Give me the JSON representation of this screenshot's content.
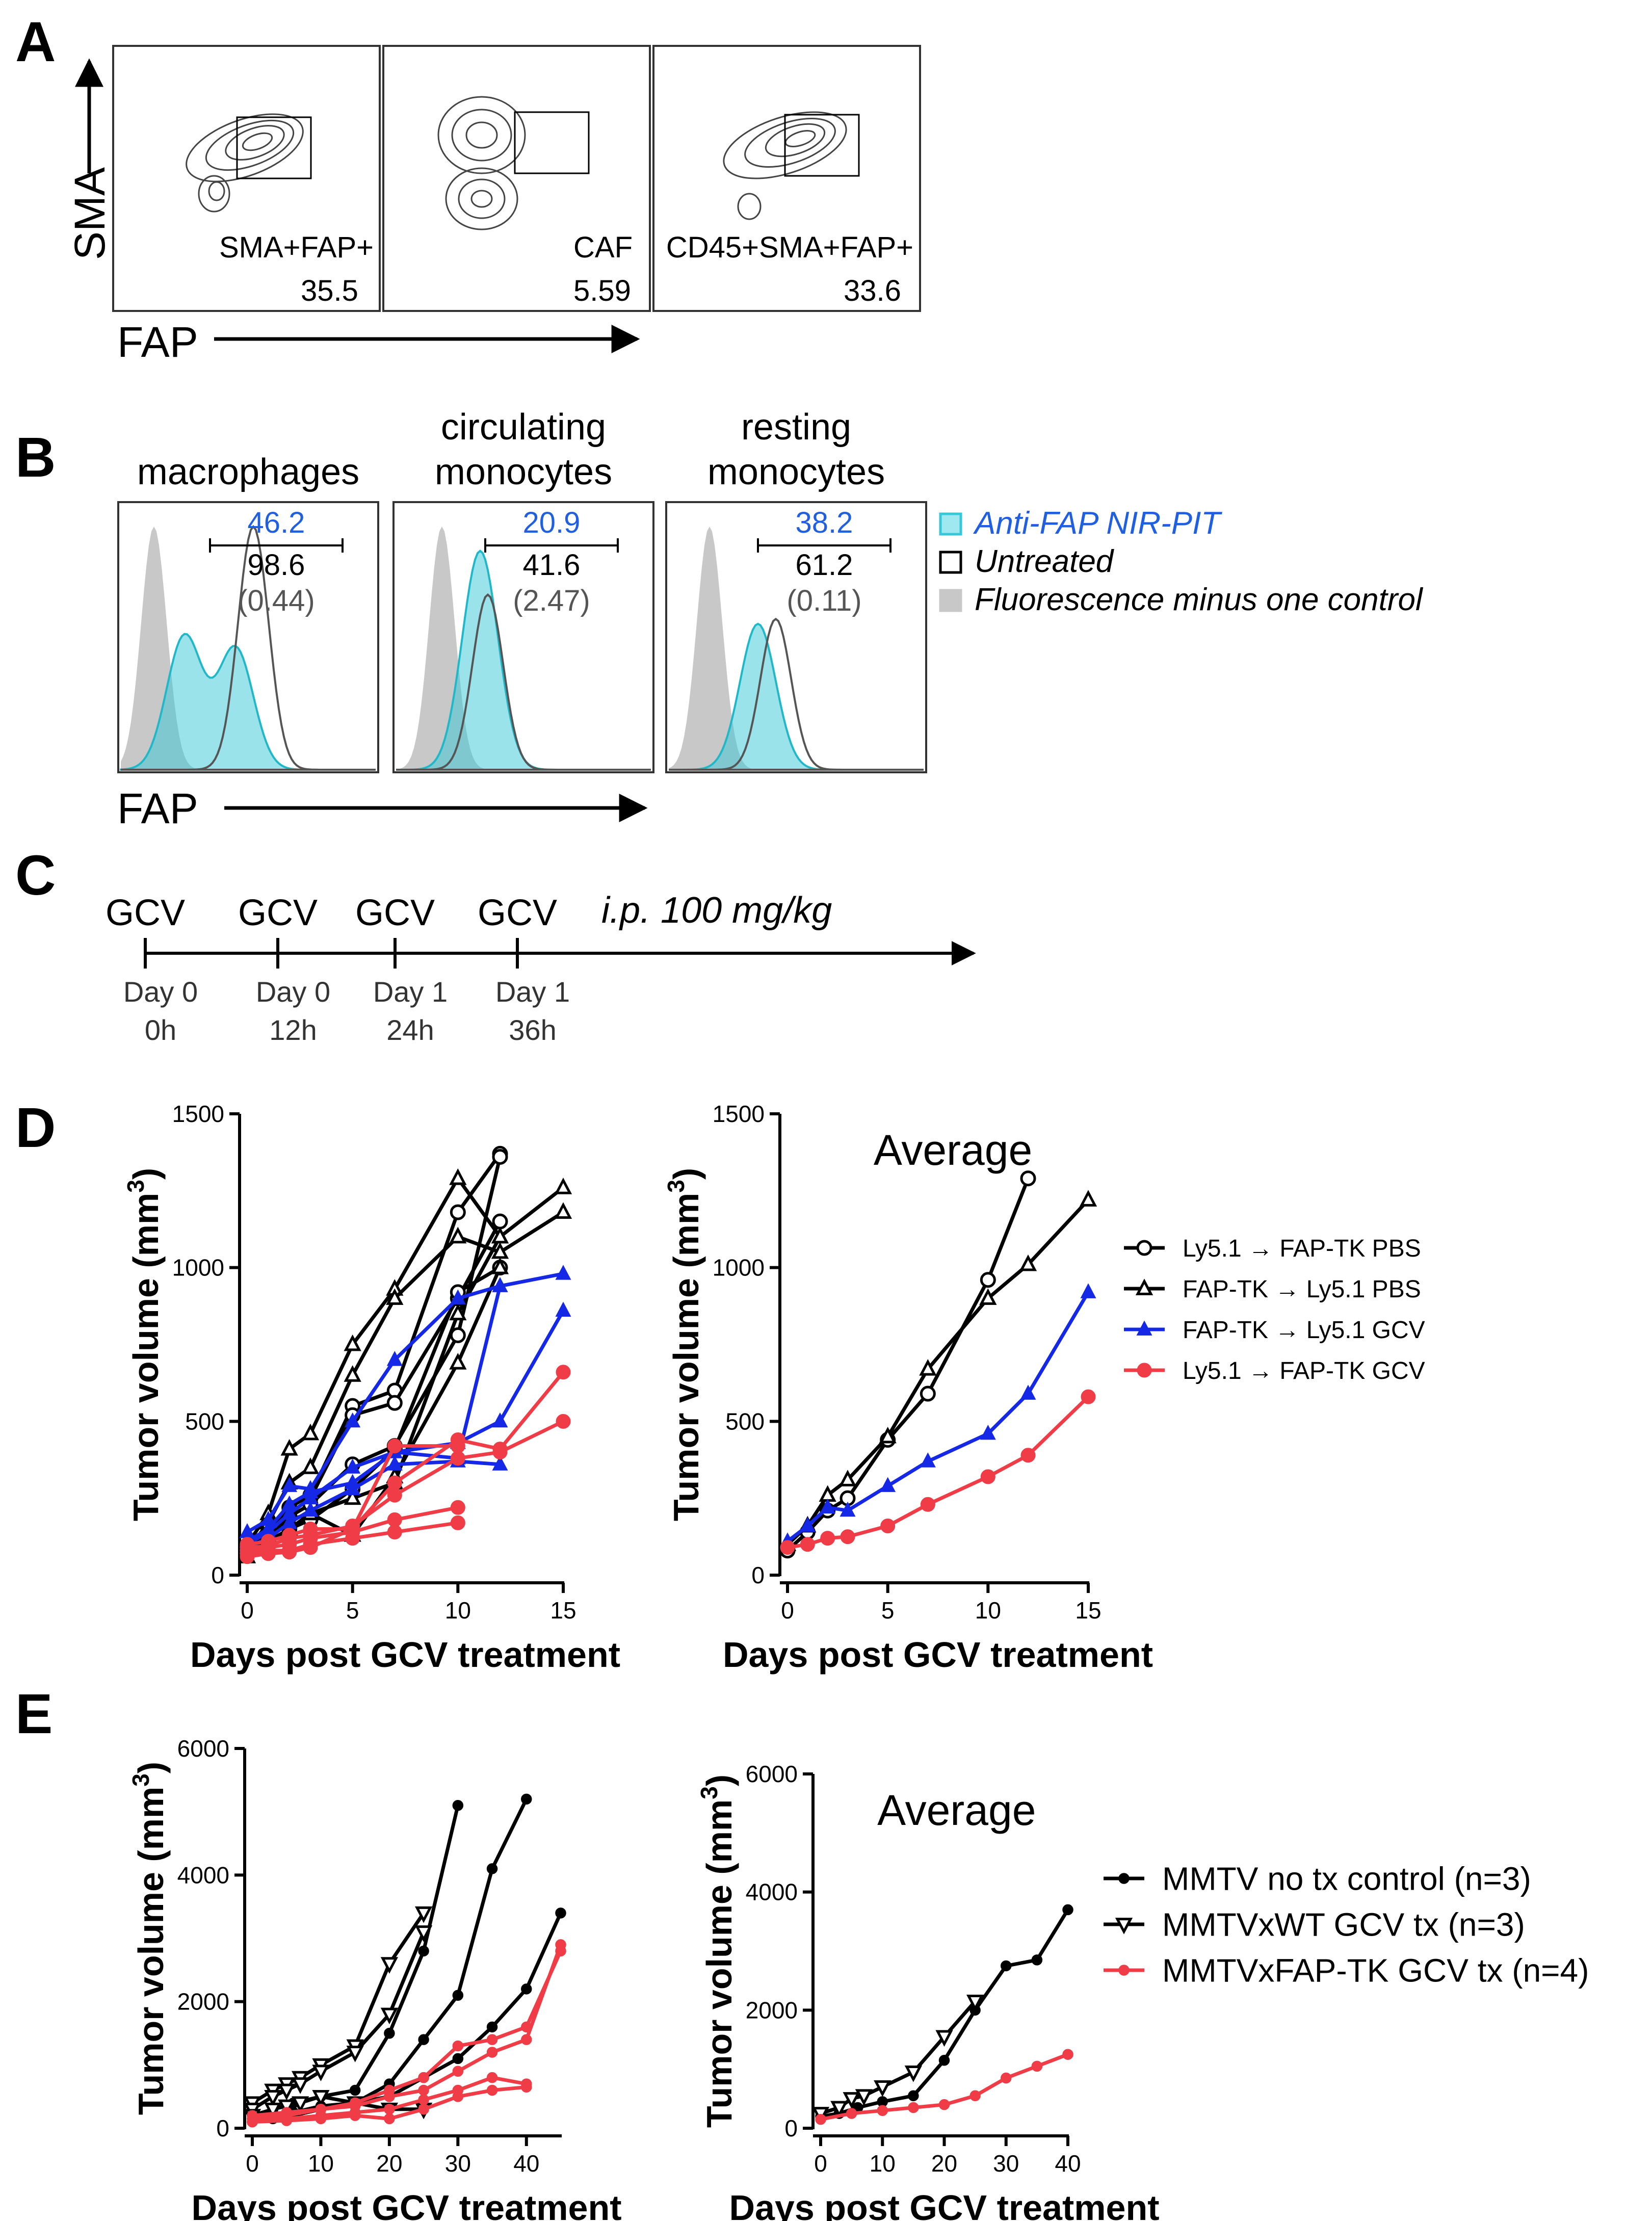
{
  "panels": {
    "A": {
      "label": "A",
      "y_axis": "SMA",
      "x_axis": "FAP",
      "plots": [
        {
          "name": "SMA+FAP+",
          "value": "35.5"
        },
        {
          "name": "CAF",
          "value": "5.59"
        },
        {
          "name": "CD45+SMA+FAP+",
          "value": "33.6"
        }
      ]
    },
    "B": {
      "label": "B",
      "x_axis": "FAP",
      "plots": [
        {
          "title1": "",
          "title2": "macrophages",
          "v1": "46.2",
          "v2": "98.6",
          "v3": "(0.44)"
        },
        {
          "title1": "circulating",
          "title2": "monocytes",
          "v1": "20.9",
          "v2": "41.6",
          "v3": "(2.47)"
        },
        {
          "title1": "resting",
          "title2": "monocytes",
          "v1": "38.2",
          "v2": "61.2",
          "v3": "(0.11)"
        }
      ],
      "legend": [
        {
          "label": "Anti-FAP NIR-PIT",
          "color": "#1f5fe0",
          "swatch": "#35c8d8"
        },
        {
          "label": "Untreated",
          "color": "#000000",
          "swatch": "#ffffff"
        },
        {
          "label": "Fluorescence minus one control",
          "color": "#000000",
          "swatch": "#c8c8c8"
        }
      ]
    },
    "C": {
      "label": "C",
      "note": "i.p. 100 mg/kg",
      "doses": [
        {
          "drug": "GCV",
          "day": "Day 0",
          "hour": "0h"
        },
        {
          "drug": "GCV",
          "day": "Day 0",
          "hour": "12h"
        },
        {
          "drug": "GCV",
          "day": "Day 1",
          "hour": "24h"
        },
        {
          "drug": "GCV",
          "day": "Day 1",
          "hour": "36h"
        }
      ]
    },
    "D": {
      "label": "D"
    },
    "E": {
      "label": "E"
    }
  },
  "chart_data": [
    {
      "id": "D-left",
      "type": "line",
      "title": "",
      "xlabel": "Days post GCV treatment",
      "ylabel": "Tumor volume (mm3)",
      "xlim": [
        0,
        15
      ],
      "ylim": [
        0,
        1500
      ],
      "xticks": [
        0,
        5,
        10,
        15
      ],
      "yticks": [
        0,
        500,
        1000,
        1500
      ],
      "series": [
        {
          "group": "Ly5.1 → FAP-TK PBS",
          "color": "#000000",
          "marker": "circle",
          "x": [
            0,
            1,
            2,
            3,
            5,
            7,
            10,
            12
          ],
          "y": [
            80,
            140,
            220,
            260,
            550,
            600,
            1180,
            1370
          ]
        },
        {
          "group": "Ly5.1 → FAP-TK PBS",
          "color": "#000000",
          "marker": "circle",
          "x": [
            0,
            1,
            2,
            3,
            5,
            7,
            10,
            12
          ],
          "y": [
            90,
            160,
            200,
            250,
            520,
            560,
            900,
            1150
          ]
        },
        {
          "group": "Ly5.1 → FAP-TK PBS",
          "color": "#000000",
          "marker": "circle",
          "x": [
            0,
            1,
            2,
            3,
            5,
            7,
            10,
            12
          ],
          "y": [
            70,
            120,
            190,
            230,
            360,
            420,
            780,
            1360
          ]
        },
        {
          "group": "Ly5.1 → FAP-TK PBS",
          "color": "#000000",
          "marker": "circle",
          "x": [
            0,
            1,
            2,
            3,
            5,
            7,
            10,
            12
          ],
          "y": [
            75,
            110,
            150,
            180,
            280,
            410,
            920,
            1000
          ]
        },
        {
          "group": "FAP-TK → Ly5.1 PBS",
          "color": "#000000",
          "marker": "triangle",
          "x": [
            0,
            1,
            2,
            3,
            5,
            7,
            10,
            12,
            15
          ],
          "y": [
            100,
            200,
            410,
            460,
            750,
            930,
            1290,
            1100,
            1260
          ]
        },
        {
          "group": "FAP-TK → Ly5.1 PBS",
          "color": "#000000",
          "marker": "triangle",
          "x": [
            0,
            1,
            2,
            3,
            5,
            7,
            10,
            12,
            15
          ],
          "y": [
            80,
            170,
            300,
            350,
            650,
            900,
            1100,
            1050,
            1180
          ]
        },
        {
          "group": "FAP-TK → Ly5.1 PBS",
          "color": "#000000",
          "marker": "triangle",
          "x": [
            0,
            1,
            2,
            3,
            5,
            7,
            10,
            12
          ],
          "y": [
            60,
            120,
            180,
            200,
            250,
            300,
            850,
            1100
          ]
        },
        {
          "group": "FAP-TK → Ly5.1 PBS",
          "color": "#000000",
          "marker": "triangle",
          "x": [
            0,
            1,
            2,
            3,
            5,
            7,
            10,
            12
          ],
          "y": [
            90,
            110,
            150,
            200,
            130,
            320,
            690,
            1000
          ]
        },
        {
          "group": "FAP-TK → Ly5.1 GCV",
          "color": "#1428e6",
          "marker": "triangle-filled",
          "x": [
            0,
            1,
            2,
            3,
            5,
            7,
            10,
            12,
            15
          ],
          "y": [
            140,
            180,
            290,
            280,
            500,
            700,
            900,
            940,
            980
          ]
        },
        {
          "group": "FAP-TK → Ly5.1 GCV",
          "color": "#1428e6",
          "marker": "triangle-filled",
          "x": [
            0,
            1,
            2,
            3,
            5,
            7,
            10,
            12,
            15
          ],
          "y": [
            110,
            150,
            230,
            270,
            300,
            400,
            430,
            500,
            860
          ]
        },
        {
          "group": "FAP-TK → Ly5.1 GCV",
          "color": "#1428e6",
          "marker": "triangle-filled",
          "x": [
            0,
            1,
            2,
            3,
            5,
            7,
            10,
            12
          ],
          "y": [
            100,
            140,
            200,
            250,
            350,
            400,
            380,
            940
          ]
        },
        {
          "group": "FAP-TK → Ly5.1 GCV",
          "color": "#1428e6",
          "marker": "triangle-filled",
          "x": [
            0,
            1,
            2,
            3,
            5,
            7,
            10,
            12
          ],
          "y": [
            90,
            120,
            170,
            210,
            280,
            360,
            370,
            360
          ]
        },
        {
          "group": "Ly5.1 → FAP-TK GCV",
          "color": "#f03c46",
          "marker": "circle-filled",
          "x": [
            0,
            1,
            2,
            3,
            5,
            7,
            10,
            12,
            15
          ],
          "y": [
            100,
            110,
            130,
            150,
            150,
            300,
            440,
            410,
            660
          ]
        },
        {
          "group": "Ly5.1 → FAP-TK GCV",
          "color": "#f03c46",
          "marker": "circle-filled",
          "x": [
            0,
            1,
            2,
            3,
            5,
            7,
            10,
            12,
            15
          ],
          "y": [
            90,
            95,
            120,
            130,
            160,
            260,
            380,
            400,
            500
          ]
        },
        {
          "group": "Ly5.1 → FAP-TK GCV",
          "color": "#f03c46",
          "marker": "circle-filled",
          "x": [
            0,
            1,
            2,
            3,
            5,
            7,
            10
          ],
          "y": [
            80,
            90,
            100,
            120,
            140,
            180,
            220
          ]
        },
        {
          "group": "Ly5.1 → FAP-TK GCV",
          "color": "#f03c46",
          "marker": "circle-filled",
          "x": [
            0,
            1,
            2,
            3,
            5,
            7,
            10
          ],
          "y": [
            70,
            80,
            80,
            100,
            120,
            140,
            170
          ]
        },
        {
          "group": "Ly5.1 → FAP-TK GCV",
          "color": "#f03c46",
          "marker": "circle-filled",
          "x": [
            0,
            1,
            2,
            3,
            5,
            7,
            10
          ],
          "y": [
            60,
            70,
            75,
            90,
            150,
            420,
            420
          ]
        }
      ]
    },
    {
      "id": "D-right",
      "type": "line",
      "title": "Average",
      "xlabel": "Days post GCV treatment",
      "ylabel": "Tumor volume (mm3)",
      "xlim": [
        0,
        15
      ],
      "ylim": [
        0,
        1500
      ],
      "xticks": [
        0,
        5,
        10,
        15
      ],
      "yticks": [
        0,
        500,
        1000,
        1500
      ],
      "legend_position": "right",
      "series": [
        {
          "name": "Ly5.1 → FAP-TK PBS",
          "color": "#000000",
          "marker": "circle",
          "x": [
            0,
            1,
            2,
            3,
            5,
            7,
            10,
            12
          ],
          "y": [
            80,
            140,
            210,
            250,
            440,
            590,
            960,
            1290
          ]
        },
        {
          "name": "FAP-TK → Ly5.1 PBS",
          "color": "#000000",
          "marker": "triangle",
          "x": [
            0,
            1,
            2,
            3,
            5,
            7,
            10,
            12,
            15
          ],
          "y": [
            100,
            160,
            260,
            310,
            450,
            670,
            900,
            1010,
            1220
          ]
        },
        {
          "name": "FAP-TK → Ly5.1 GCV",
          "color": "#1428e6",
          "marker": "triangle-filled",
          "x": [
            0,
            1,
            2,
            3,
            5,
            7,
            10,
            12,
            15
          ],
          "y": [
            110,
            160,
            220,
            210,
            290,
            370,
            460,
            590,
            920
          ]
        },
        {
          "name": "Ly5.1 → FAP-TK GCV",
          "color": "#f03c46",
          "marker": "circle-filled",
          "x": [
            0,
            1,
            2,
            3,
            5,
            7,
            10,
            12,
            15
          ],
          "y": [
            90,
            100,
            120,
            125,
            160,
            230,
            320,
            390,
            580
          ]
        }
      ]
    },
    {
      "id": "E-left",
      "type": "line",
      "title": "",
      "xlabel": "Days post GCV treatment",
      "ylabel": "Tumor volume (mm3)",
      "xlim": [
        0,
        45
      ],
      "ylim": [
        0,
        6000
      ],
      "xticks": [
        0,
        10,
        20,
        30,
        40
      ],
      "yticks": [
        0,
        2000,
        4000,
        6000
      ],
      "series": [
        {
          "group": "MMTV no tx control (n=3)",
          "color": "#000000",
          "marker": "dot",
          "x": [
            0,
            3,
            6,
            10,
            15,
            20,
            25,
            30
          ],
          "y": [
            200,
            300,
            400,
            500,
            600,
            1500,
            2800,
            5100
          ]
        },
        {
          "group": "MMTV no tx control (n=3)",
          "color": "#000000",
          "marker": "dot",
          "x": [
            0,
            3,
            6,
            10,
            15,
            20,
            25,
            30,
            35,
            40
          ],
          "y": [
            150,
            200,
            250,
            350,
            400,
            700,
            1400,
            2100,
            4100,
            5200
          ]
        },
        {
          "group": "MMTV no tx control (n=3)",
          "color": "#000000",
          "marker": "dot",
          "x": [
            0,
            3,
            6,
            10,
            15,
            20,
            25,
            30,
            35,
            40,
            45
          ],
          "y": [
            100,
            150,
            200,
            300,
            400,
            500,
            800,
            1100,
            1600,
            2200,
            3400
          ]
        },
        {
          "group": "MMTVxWT GCV tx (n=3)",
          "color": "#000000",
          "marker": "triangle-down",
          "x": [
            0,
            3,
            5,
            7,
            10,
            15,
            20,
            25
          ],
          "y": [
            400,
            600,
            700,
            800,
            1000,
            1300,
            2600,
            3400
          ]
        },
        {
          "group": "MMTVxWT GCV tx (n=3)",
          "color": "#000000",
          "marker": "triangle-down",
          "x": [
            0,
            3,
            5,
            7,
            10,
            15,
            20,
            25
          ],
          "y": [
            300,
            500,
            600,
            700,
            900,
            1200,
            1800,
            3100
          ]
        },
        {
          "group": "MMTVxWT GCV tx (n=3)",
          "color": "#000000",
          "marker": "triangle-down",
          "x": [
            0,
            3,
            5,
            7,
            10,
            15,
            20,
            25
          ],
          "y": [
            200,
            300,
            350,
            400,
            500,
            400,
            300,
            300
          ]
        },
        {
          "group": "MMTVxFAP-TK GCV tx (n=4)",
          "color": "#f03c46",
          "marker": "dot",
          "x": [
            0,
            5,
            10,
            15,
            20,
            25,
            30,
            35,
            40,
            45
          ],
          "y": [
            200,
            250,
            300,
            400,
            600,
            800,
            1300,
            1400,
            1600,
            2800
          ]
        },
        {
          "group": "MMTVxFAP-TK GCV tx (n=4)",
          "color": "#f03c46",
          "marker": "dot",
          "x": [
            0,
            5,
            10,
            15,
            20,
            25,
            30,
            35,
            40,
            45
          ],
          "y": [
            150,
            200,
            300,
            350,
            500,
            600,
            900,
            1200,
            1400,
            2900
          ]
        },
        {
          "group": "MMTVxFAP-TK GCV tx (n=4)",
          "color": "#f03c46",
          "marker": "dot",
          "x": [
            0,
            5,
            10,
            15,
            20,
            25,
            30,
            35,
            40
          ],
          "y": [
            100,
            150,
            200,
            250,
            300,
            450,
            600,
            800,
            700
          ]
        },
        {
          "group": "MMTVxFAP-TK GCV tx (n=4)",
          "color": "#f03c46",
          "marker": "dot",
          "x": [
            0,
            5,
            10,
            15,
            20,
            25,
            30,
            35,
            40
          ],
          "y": [
            100,
            120,
            150,
            200,
            150,
            300,
            500,
            600,
            650
          ]
        }
      ]
    },
    {
      "id": "E-right",
      "type": "line",
      "title": "Average",
      "xlabel": "Days post GCV treatment",
      "ylabel": "Tumor volume (mm3)",
      "xlim": [
        0,
        40
      ],
      "ylim": [
        0,
        6000
      ],
      "xticks": [
        0,
        10,
        20,
        30,
        40
      ],
      "yticks": [
        0,
        2000,
        4000,
        6000
      ],
      "legend_position": "right",
      "series": [
        {
          "name": "MMTV no tx control (n=3)",
          "color": "#000000",
          "marker": "dot",
          "x": [
            0,
            3,
            6,
            10,
            15,
            20,
            25,
            30,
            35,
            40
          ],
          "y": [
            200,
            250,
            350,
            450,
            550,
            1150,
            2000,
            2750,
            2850,
            3700
          ]
        },
        {
          "name": "MMTVxWT GCV tx (n=3)",
          "color": "#000000",
          "marker": "triangle-down",
          "x": [
            0,
            3,
            5,
            7,
            10,
            15,
            20,
            25
          ],
          "y": [
            250,
            350,
            500,
            550,
            700,
            950,
            1550,
            2150
          ]
        },
        {
          "name": "MMTVxFAP-TK GCV tx (n=4)",
          "color": "#f03c46",
          "marker": "dot",
          "x": [
            0,
            5,
            10,
            15,
            20,
            25,
            30,
            35,
            40
          ],
          "y": [
            150,
            250,
            300,
            350,
            400,
            550,
            850,
            1050,
            1250
          ]
        }
      ]
    }
  ]
}
